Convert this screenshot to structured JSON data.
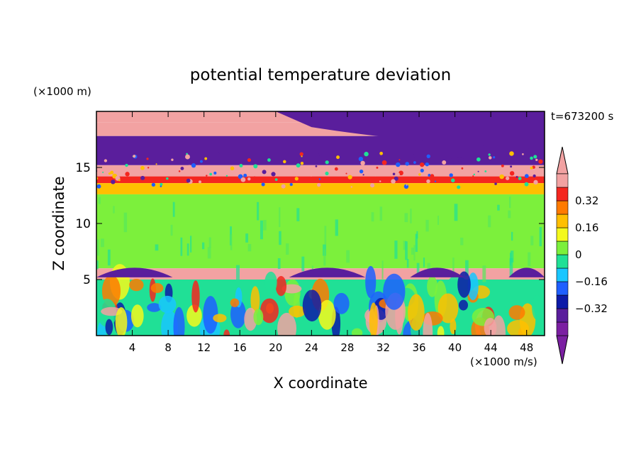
{
  "chart_data": {
    "type": "heatmap",
    "title": "potential temperature deviation",
    "xlabel": "X coordinate",
    "ylabel": "Z coordinate",
    "x_unit": "(×1000 m/s)",
    "y_unit": "(×1000 m)",
    "time_label": "t=673200 s",
    "xlim": [
      0,
      50
    ],
    "ylim": [
      0,
      20
    ],
    "x_ticks": [
      4,
      8,
      12,
      16,
      20,
      24,
      28,
      32,
      36,
      40,
      44,
      48
    ],
    "y_ticks": [
      5,
      10,
      15
    ],
    "colorbar": {
      "levels": [
        -0.48,
        -0.4,
        -0.32,
        -0.24,
        -0.16,
        -0.08,
        0,
        0.08,
        0.16,
        0.24,
        0.32,
        0.4
      ],
      "colors": [
        "#7b1fa2",
        "#5a1e9c",
        "#0d1aa8",
        "#1f5fff",
        "#19c6ff",
        "#20e096",
        "#7cf03c",
        "#f4f91c",
        "#ffbf00",
        "#ff7a00",
        "#f4261f",
        "#f2a2a2"
      ],
      "tick_labels": [
        "0.32",
        "0.16",
        "0",
        "-0.16",
        "-0.32"
      ],
      "tick_values": [
        0.32,
        0.16,
        0,
        -0.16,
        -0.32
      ]
    },
    "layers": [
      {
        "z": [
          19.0,
          20.0
        ],
        "value": 0.45
      },
      {
        "z": [
          17.8,
          19.0
        ],
        "value": 0.45
      },
      {
        "z": [
          15.2,
          17.8
        ],
        "value": -0.4
      },
      {
        "z": [
          14.2,
          15.2
        ],
        "value": 0.45
      },
      {
        "z": [
          13.6,
          14.2
        ],
        "value": 0.34
      },
      {
        "z": [
          12.6,
          13.6
        ],
        "value": 0.18
      },
      {
        "z": [
          6.0,
          12.6
        ],
        "value": 0.02
      },
      {
        "z": [
          5.0,
          6.0
        ],
        "value": 0.45
      },
      {
        "z": [
          0.0,
          5.0
        ],
        "value": -0.05
      }
    ]
  }
}
